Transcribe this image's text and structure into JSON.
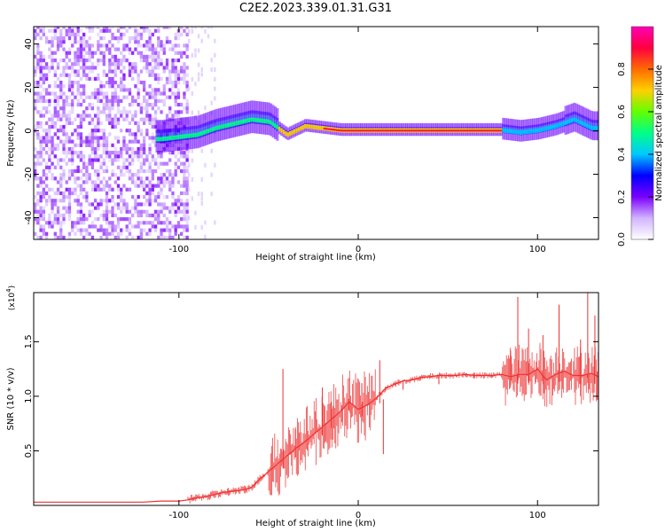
{
  "figure": {
    "title": "C2E2.2023.339.01.31.G31"
  },
  "chart_data": [
    {
      "type": "heatmap",
      "title": "",
      "xlabel": "Height of straight line (km)",
      "ylabel": "Frequency (Hz)",
      "xlim": [
        -181,
        134
      ],
      "ylim": [
        -50,
        48
      ],
      "xticks": [
        -100,
        0,
        100
      ],
      "yticks": [
        -40,
        -20,
        0,
        20,
        40
      ],
      "grid": false,
      "description_points": {
        "x": [
          -110,
          -100,
          -90,
          -80,
          -70,
          -60,
          -50,
          -40,
          -30,
          -20,
          -10,
          0,
          10,
          20,
          30,
          40,
          50,
          60,
          70,
          80,
          90,
          100,
          110,
          120,
          130
        ],
        "center_frequency": [
          -4,
          -3,
          -2,
          1,
          3,
          5,
          4,
          -2,
          2,
          1,
          0,
          0,
          0,
          0,
          0,
          0,
          0,
          0,
          0,
          0,
          -1,
          0,
          2,
          5,
          1
        ]
      },
      "colorbar": {
        "label": "Normalized spectral amplitude",
        "range": [
          0,
          1
        ],
        "ticks": [
          0.0,
          0.2,
          0.4,
          0.6,
          0.8
        ],
        "colormap": [
          "#ffffff",
          "#d2b4ff",
          "#7a00ff",
          "#0000ff",
          "#00c8ff",
          "#00ff88",
          "#62ff00",
          "#ffd000",
          "#ff6a00",
          "#ff0040",
          "#ff00b4"
        ]
      }
    },
    {
      "type": "line",
      "title": "",
      "xlabel": "Height of straight line (km)",
      "ylabel": "SNR (10 * v/v)",
      "y_multiplier_label": "(x10",
      "y_multiplier_power": "4",
      "y_multiplier_close": ")",
      "xlim": [
        -181,
        134
      ],
      "ylim": [
        0,
        1.95
      ],
      "xticks": [
        -100,
        0,
        100
      ],
      "yticks": [
        0.5,
        1.0,
        1.5
      ],
      "color": "#ee3131",
      "grid": false,
      "x": [
        -181,
        -170,
        -160,
        -150,
        -140,
        -130,
        -120,
        -110,
        -100,
        -95,
        -90,
        -85,
        -80,
        -75,
        -70,
        -65,
        -60,
        -55,
        -50,
        -45,
        -40,
        -35,
        -30,
        -25,
        -20,
        -15,
        -10,
        -5,
        0,
        5,
        10,
        15,
        20,
        25,
        30,
        35,
        40,
        45,
        50,
        55,
        60,
        65,
        70,
        75,
        80,
        85,
        90,
        95,
        100,
        105,
        110,
        115,
        120,
        125,
        130,
        134
      ],
      "y": [
        0.03,
        0.03,
        0.03,
        0.03,
        0.03,
        0.03,
        0.03,
        0.04,
        0.04,
        0.05,
        0.07,
        0.08,
        0.1,
        0.12,
        0.13,
        0.14,
        0.16,
        0.24,
        0.31,
        0.38,
        0.45,
        0.52,
        0.58,
        0.65,
        0.72,
        0.79,
        0.86,
        0.95,
        0.88,
        0.92,
        0.98,
        1.07,
        1.11,
        1.14,
        1.15,
        1.17,
        1.18,
        1.19,
        1.19,
        1.19,
        1.2,
        1.19,
        1.19,
        1.19,
        1.2,
        1.18,
        1.2,
        1.2,
        1.25,
        1.15,
        1.2,
        1.23,
        1.19,
        1.19,
        1.21,
        1.18
      ],
      "spikes": {
        "x": [
          -42,
          -35,
          -20,
          -15,
          -5,
          2,
          12,
          14,
          25,
          45,
          85,
          89,
          95,
          103,
          112,
          124,
          128,
          132
        ],
        "y": [
          1.25,
          0.7,
          1.08,
          0.95,
          1.17,
          1.12,
          1.33,
          0.47,
          1.14,
          1.16,
          1.42,
          1.91,
          1.62,
          1.56,
          1.84,
          1.52,
          1.95,
          1.74
        ]
      }
    }
  ]
}
